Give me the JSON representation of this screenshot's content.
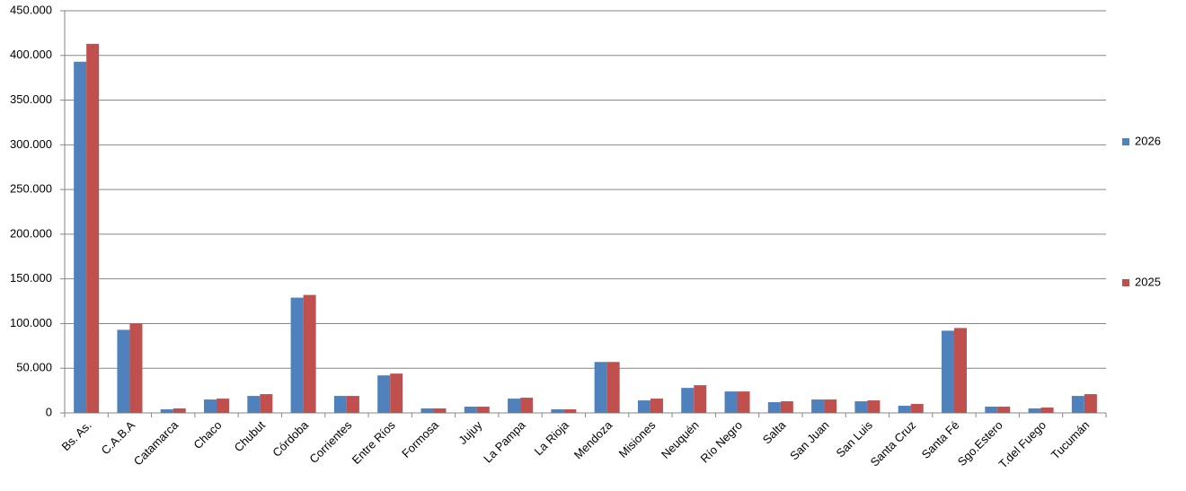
{
  "chart_data": {
    "type": "bar",
    "categories": [
      "Bs. As.",
      "C.A.B.A",
      "Catamarca",
      "Chaco",
      "Chubut",
      "Córdoba",
      "Corrientes",
      "Entre Ríos",
      "Formosa",
      "Jujuy",
      "La Pampa",
      "La Rioja",
      "Mendoza",
      "Misiones",
      "Neuquén",
      "Río Negro",
      "Salta",
      "San Juan",
      "San Luis",
      "Santa Cruz",
      "Santa Fé",
      "Sgo.Estero",
      "T.del Fuego",
      "Tucumán"
    ],
    "series": [
      {
        "name": "2026",
        "color": "#4f81bd",
        "values": [
          393000,
          93000,
          4000,
          15000,
          19000,
          129000,
          19000,
          42000,
          5000,
          7000,
          16000,
          4000,
          57000,
          14000,
          28000,
          24000,
          12000,
          15000,
          13000,
          8000,
          92000,
          7000,
          5000,
          19000
        ]
      },
      {
        "name": "2025",
        "color": "#c0504d",
        "values": [
          413000,
          100000,
          5000,
          16000,
          21000,
          132000,
          19000,
          44000,
          5000,
          7000,
          17000,
          4000,
          57000,
          16000,
          31000,
          24000,
          13000,
          15000,
          14000,
          10000,
          95000,
          7000,
          6000,
          21000
        ]
      }
    ],
    "ylim": [
      0,
      450000
    ],
    "yticks": [
      0,
      {
        "value": 50000,
        "label": "50.000"
      },
      {
        "value": 100000,
        "label": "100.000"
      },
      {
        "value": 150000,
        "label": "150.000"
      },
      {
        "value": 200000,
        "label": "200.000"
      },
      {
        "value": 250000,
        "label": "250.000"
      },
      {
        "value": 300000,
        "label": "300.000"
      },
      {
        "value": 350000,
        "label": "350.000"
      },
      {
        "value": 400000,
        "label": "400.000"
      },
      {
        "value": 450000,
        "label": "450.000"
      }
    ],
    "grid": true,
    "legend": "right"
  }
}
